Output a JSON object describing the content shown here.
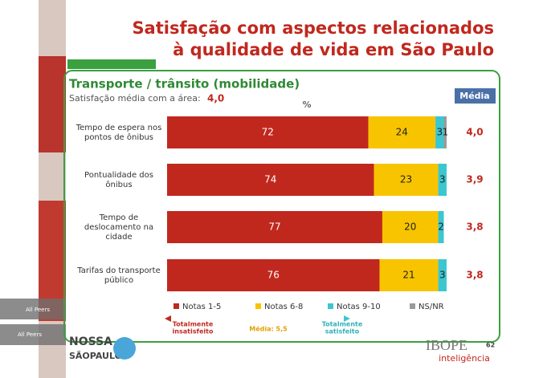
{
  "slide": {
    "title_lines": [
      "Satisfação com aspectos relacionados",
      "à qualidade de vida em São Paulo"
    ],
    "subtitle": "Transporte / trânsito (mobilidade)",
    "area_label": "Satisfação média com a área:",
    "area_value": "4,0",
    "side_tags": [
      "All Peers",
      "All Peers"
    ],
    "logo_left": [
      "NOSSA",
      "SÃOPAULO"
    ],
    "logo_right": [
      "IBOPE",
      "inteligência"
    ],
    "page": "62"
  },
  "chart_data": {
    "type": "bar",
    "orientation": "horizontal",
    "stacked": true,
    "unit_label": "%",
    "categories": [
      [
        "Tempo de espera nos",
        "pontos de ônibus"
      ],
      [
        "Pontualidade dos",
        "ônibus"
      ],
      [
        "Tempo de",
        "deslocamento na",
        "cidade"
      ],
      [
        "Tarifas do transporte",
        "público"
      ]
    ],
    "series": [
      {
        "name": "Notas 1-5",
        "color": "#c0281e",
        "values": [
          72,
          74,
          77,
          76
        ]
      },
      {
        "name": "Notas 6-8",
        "color": "#f8c400",
        "values": [
          24,
          23,
          20,
          21
        ]
      },
      {
        "name": "Notas 9-10",
        "color": "#3cc6cf",
        "values": [
          3,
          3,
          2,
          3
        ]
      },
      {
        "name": "NS/NR",
        "color": "#9a9a9a",
        "values": [
          1,
          null,
          null,
          null
        ]
      }
    ],
    "xlim": [
      0,
      100
    ],
    "mean": {
      "header": "Média",
      "values": [
        4.0,
        3.9,
        3.8,
        3.8
      ],
      "value_labels": [
        "4,0",
        "3,9",
        "3,8",
        "3,8"
      ]
    },
    "scale": {
      "left": [
        "Totalmente",
        "insatisfeito"
      ],
      "middle": "Média: 5,5",
      "right": [
        "Totalmente",
        "satisfeito"
      ]
    }
  }
}
